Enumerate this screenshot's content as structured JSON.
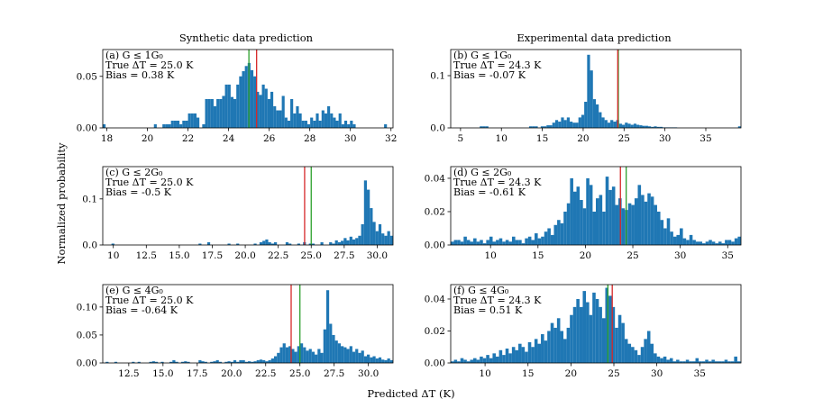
{
  "figure": {
    "col_titles": [
      "Synthetic data prediction",
      "Experimental data prediction"
    ],
    "ylabel": "Normalized probability",
    "xlabel": "Predicted ΔT (K)"
  },
  "colors": {
    "bar": "#1f77b4",
    "true_line": "#2ca02c",
    "pred_line": "#d62728"
  },
  "chart_data": [
    {
      "type": "bar",
      "panel": "a",
      "label": "(a) G ≤ 1G₀",
      "true_text": "True ΔT = 25.0 K",
      "bias_text": "Bias = 0.38 K",
      "true_value": 25.0,
      "pred_value": 25.38,
      "xlim": [
        17.8,
        32.1
      ],
      "ylim": [
        0,
        0.076
      ],
      "xticks": [
        18,
        20,
        22,
        24,
        26,
        28,
        30,
        32
      ],
      "xtick_labels": [
        "18",
        "20",
        "22",
        "24",
        "26",
        "28",
        "30",
        "32"
      ],
      "yticks": [
        0,
        0.05
      ],
      "ytick_labels": [
        "0.00",
        "0.05"
      ],
      "bin_start": 17.8,
      "bin_width": 0.14,
      "values": [
        0.0035,
        0,
        0,
        0,
        0,
        0,
        0,
        0,
        0,
        0,
        0,
        0,
        0,
        0,
        0,
        0,
        0,
        0,
        0.0035,
        0,
        0,
        0.0035,
        0.0035,
        0.0035,
        0.007,
        0.007,
        0.007,
        0.0035,
        0.007,
        0.007,
        0.014,
        0.014,
        0.014,
        0.01,
        0,
        0.0035,
        0.028,
        0.028,
        0.028,
        0.021,
        0.028,
        0.028,
        0.031,
        0.042,
        0.042,
        0.03,
        0.028,
        0.042,
        0.05,
        0.055,
        0.06,
        0.063,
        0.056,
        0.05,
        0.035,
        0.032,
        0.042,
        0.038,
        0.028,
        0.035,
        0.021,
        0.017,
        0.017,
        0.031,
        0.01,
        0.007,
        0.028,
        0.014,
        0.021,
        0.014,
        0.007,
        0.007,
        0.0035,
        0.01,
        0.007,
        0.014,
        0.007,
        0.017,
        0.014,
        0.021,
        0.014,
        0.01,
        0.007,
        0.014,
        0.0035,
        0.007,
        0.0035,
        0.007,
        0.0035,
        0,
        0,
        0,
        0,
        0,
        0,
        0,
        0,
        0,
        0,
        0.0035
      ]
    },
    {
      "type": "bar",
      "panel": "b",
      "label": "(b) G ≤ 1G₀",
      "true_text": "True ΔT = 24.3 K",
      "bias_text": "Bias = -0.07 K",
      "true_value": 24.3,
      "pred_value": 24.23,
      "xlim": [
        3.8,
        39.3
      ],
      "ylim": [
        0,
        0.15
      ],
      "xticks": [
        5,
        10,
        15,
        20,
        25,
        30,
        35
      ],
      "xtick_labels": [
        "5",
        "10",
        "15",
        "20",
        "25",
        "30",
        "35"
      ],
      "yticks": [
        0,
        0.1
      ],
      "ytick_labels": [
        "0.0",
        "0.1"
      ],
      "bin_start": 3.8,
      "bin_width": 0.355,
      "values": [
        0,
        0,
        0,
        0,
        0,
        0,
        0,
        0,
        0,
        0,
        0.003,
        0.003,
        0.003,
        0,
        0,
        0,
        0,
        0,
        0,
        0,
        0,
        0,
        0,
        0,
        0,
        0,
        0,
        0.003,
        0.003,
        0.003,
        0,
        0.003,
        0.003,
        0.005,
        0.005,
        0.01,
        0.015,
        0.012,
        0.02,
        0.015,
        0.02,
        0.012,
        0.01,
        0.01,
        0.02,
        0.025,
        0.05,
        0.14,
        0.11,
        0.055,
        0.045,
        0.03,
        0.02,
        0.015,
        0.01,
        0.015,
        0.012,
        0.015,
        0.008,
        0.006,
        0.01,
        0.008,
        0.006,
        0.008,
        0.006,
        0.005,
        0.004,
        0.004,
        0.003,
        0.002,
        0.003,
        0.002,
        0.002,
        0.001,
        0.001,
        0.001,
        0.001,
        0.001,
        0,
        0,
        0,
        0,
        0,
        0,
        0,
        0,
        0,
        0,
        0,
        0,
        0,
        0,
        0,
        0,
        0,
        0,
        0,
        0,
        0,
        0.003
      ]
    },
    {
      "type": "bar",
      "panel": "c",
      "label": "(c) G ≤ 2G₀",
      "true_text": "True ΔT = 25.0 K",
      "bias_text": "Bias = -0.5 K",
      "true_value": 25.0,
      "pred_value": 24.5,
      "xlim": [
        9.2,
        31.2
      ],
      "ylim": [
        0,
        0.17
      ],
      "xticks": [
        10,
        12.5,
        15,
        17.5,
        20,
        22.5,
        25,
        27.5,
        30
      ],
      "xtick_labels": [
        "10",
        "12.5",
        "15.0",
        "17.5",
        "20.0",
        "22.5",
        "25.0",
        "27.5",
        "30.0"
      ],
      "yticks": [
        0,
        0.1
      ],
      "ytick_labels": [
        "0.0",
        "0.1"
      ],
      "bin_start": 9.2,
      "bin_width": 0.22,
      "values": [
        0,
        0,
        0,
        0.003,
        0,
        0,
        0,
        0,
        0,
        0,
        0,
        0,
        0,
        0,
        0,
        0,
        0,
        0,
        0,
        0,
        0,
        0,
        0,
        0,
        0,
        0,
        0,
        0,
        0,
        0,
        0,
        0,
        0,
        0.003,
        0,
        0,
        0.006,
        0,
        0,
        0,
        0,
        0,
        0,
        0.003,
        0,
        0,
        0.003,
        0,
        0,
        0,
        0,
        0,
        0.003,
        0,
        0.006,
        0.009,
        0.012,
        0.006,
        0.003,
        0.006,
        0,
        0,
        0,
        0.006,
        0.003,
        0,
        0,
        0.003,
        0,
        0.006,
        0,
        0.003,
        0.003,
        0,
        0,
        0.006,
        0,
        0,
        0.006,
        0.003,
        0.01,
        0.006,
        0.009,
        0.015,
        0.01,
        0.018,
        0.012,
        0.015,
        0.02,
        0.045,
        0.14,
        0.12,
        0.08,
        0.05,
        0.03,
        0.045,
        0.025,
        0.02,
        0.03,
        0.02,
        0.01,
        0.02,
        0.015,
        0.008,
        0.01,
        0.006,
        0.015,
        0.01,
        0.012,
        0.008,
        0.012,
        0.006,
        0.003,
        0.006,
        0.003,
        0.003,
        0,
        0,
        0.003,
        0.003
      ]
    },
    {
      "type": "bar",
      "panel": "d",
      "label": "(d) G ≤ 2G₀",
      "true_text": "True ΔT = 24.3 K",
      "bias_text": "Bias = -0.61 K",
      "true_value": 24.3,
      "pred_value": 23.69,
      "xlim": [
        5.8,
        36.4
      ],
      "ylim": [
        0,
        0.047
      ],
      "xticks": [
        10,
        15,
        20,
        25,
        30,
        35
      ],
      "xtick_labels": [
        "10",
        "15",
        "20",
        "25",
        "30",
        "35"
      ],
      "yticks": [
        0,
        0.02,
        0.04
      ],
      "ytick_labels": [
        "0.00",
        "0.02",
        "0.04"
      ],
      "bin_start": 5.8,
      "bin_width": 0.34,
      "values": [
        0.002,
        0.003,
        0.003,
        0.002,
        0.005,
        0.003,
        0.002,
        0.004,
        0.002,
        0.003,
        0.001,
        0.003,
        0.005,
        0.002,
        0.003,
        0.004,
        0.002,
        0.003,
        0.002,
        0.005,
        0.003,
        0.003,
        0.001,
        0.004,
        0.005,
        0.003,
        0.007,
        0.004,
        0.005,
        0.008,
        0.01,
        0.006,
        0.012,
        0.015,
        0.013,
        0.02,
        0.025,
        0.04,
        0.032,
        0.035,
        0.027,
        0.022,
        0.04,
        0.036,
        0.02,
        0.028,
        0.03,
        0.02,
        0.041,
        0.033,
        0.035,
        0.024,
        0.028,
        0.022,
        0.021,
        0.025,
        0.024,
        0.028,
        0.036,
        0.03,
        0.026,
        0.031,
        0.029,
        0.024,
        0.02,
        0.015,
        0.01,
        0.016,
        0.008,
        0.005,
        0.006,
        0.01,
        0.004,
        0.003,
        0.006,
        0.003,
        0.002,
        0.002,
        0.001,
        0.002,
        0.003,
        0.002,
        0.001,
        0.002,
        0.001,
        0.003,
        0.003,
        0.002,
        0.004,
        0.005
      ]
    },
    {
      "type": "bar",
      "panel": "e",
      "label": "(e) G ≤ 4G₀",
      "true_text": "True ΔT = 25.0 K",
      "bias_text": "Bias = -0.64 K",
      "true_value": 25.0,
      "pred_value": 24.36,
      "xlim": [
        10.6,
        31.8
      ],
      "ylim": [
        0,
        0.14
      ],
      "xticks": [
        12.5,
        15,
        17.5,
        20,
        22.5,
        25,
        27.5,
        30
      ],
      "xtick_labels": [
        "12.5",
        "15.0",
        "17.5",
        "20.0",
        "22.5",
        "25.0",
        "27.5",
        "30.0"
      ],
      "yticks": [
        0,
        0.05,
        0.1
      ],
      "ytick_labels": [
        "0.00",
        "0.05",
        "0.10"
      ],
      "bin_start": 10.6,
      "bin_width": 0.212,
      "values": [
        0,
        0.002,
        0,
        0,
        0.002,
        0,
        0,
        0,
        0,
        0,
        0.002,
        0,
        0.002,
        0,
        0,
        0,
        0.002,
        0.003,
        0.002,
        0,
        0.002,
        0,
        0,
        0.002,
        0.005,
        0.002,
        0,
        0.002,
        0.003,
        0.002,
        0,
        0,
        0,
        0.005,
        0.003,
        0.002,
        0,
        0.002,
        0.003,
        0.005,
        0.002,
        0,
        0.002,
        0.003,
        0.002,
        0.005,
        0.002,
        0.005,
        0.005,
        0.002,
        0.003,
        0.002,
        0.003,
        0.005,
        0.006,
        0.005,
        0.003,
        0.005,
        0.008,
        0.012,
        0.018,
        0.028,
        0.035,
        0.028,
        0.03,
        0.025,
        0.02,
        0.03,
        0.035,
        0.028,
        0.022,
        0.025,
        0.02,
        0.015,
        0.025,
        0.018,
        0.06,
        0.13,
        0.07,
        0.05,
        0.04,
        0.035,
        0.03,
        0.028,
        0.025,
        0.03,
        0.02,
        0.025,
        0.018,
        0.022,
        0.012,
        0.015,
        0.01,
        0.012,
        0.008,
        0.01,
        0.006,
        0.005,
        0.008,
        0.005
      ]
    },
    {
      "type": "bar",
      "panel": "f",
      "label": "(f) G ≤ 4G₀",
      "true_text": "True ΔT = 24.3 K",
      "bias_text": "Bias = 0.51 K",
      "true_value": 24.3,
      "pred_value": 24.81,
      "xlim": [
        6.0,
        39.8
      ],
      "ylim": [
        0,
        0.049
      ],
      "xticks": [
        10,
        15,
        20,
        25,
        30,
        35
      ],
      "xtick_labels": [
        "10",
        "15",
        "20",
        "25",
        "30",
        "35"
      ],
      "yticks": [
        0,
        0.02,
        0.04
      ],
      "ytick_labels": [
        "0.00",
        "0.02",
        "0.04"
      ],
      "bin_start": 6.0,
      "bin_width": 0.375,
      "values": [
        0.001,
        0.002,
        0.001,
        0.003,
        0.002,
        0.001,
        0.002,
        0.003,
        0.002,
        0.004,
        0.003,
        0.005,
        0.003,
        0.006,
        0.004,
        0.008,
        0.005,
        0.009,
        0.006,
        0.01,
        0.008,
        0.012,
        0.01,
        0.007,
        0.013,
        0.01,
        0.015,
        0.012,
        0.018,
        0.014,
        0.02,
        0.025,
        0.022,
        0.028,
        0.02,
        0.015,
        0.022,
        0.03,
        0.035,
        0.04,
        0.035,
        0.045,
        0.038,
        0.03,
        0.044,
        0.04,
        0.035,
        0.028,
        0.047,
        0.042,
        0.035,
        0.022,
        0.03,
        0.025,
        0.015,
        0.012,
        0.01,
        0.008,
        0.005,
        0.01,
        0.015,
        0.02,
        0.012,
        0.006,
        0.004,
        0.003,
        0.004,
        0.002,
        0.003,
        0.001,
        0.002,
        0.001,
        0.001,
        0.002,
        0.001,
        0.001,
        0.003,
        0.001,
        0.001,
        0.002,
        0.001,
        0.002,
        0.001,
        0.001,
        0.001,
        0.002,
        0.001,
        0.001,
        0.004,
        0.001
      ]
    }
  ]
}
